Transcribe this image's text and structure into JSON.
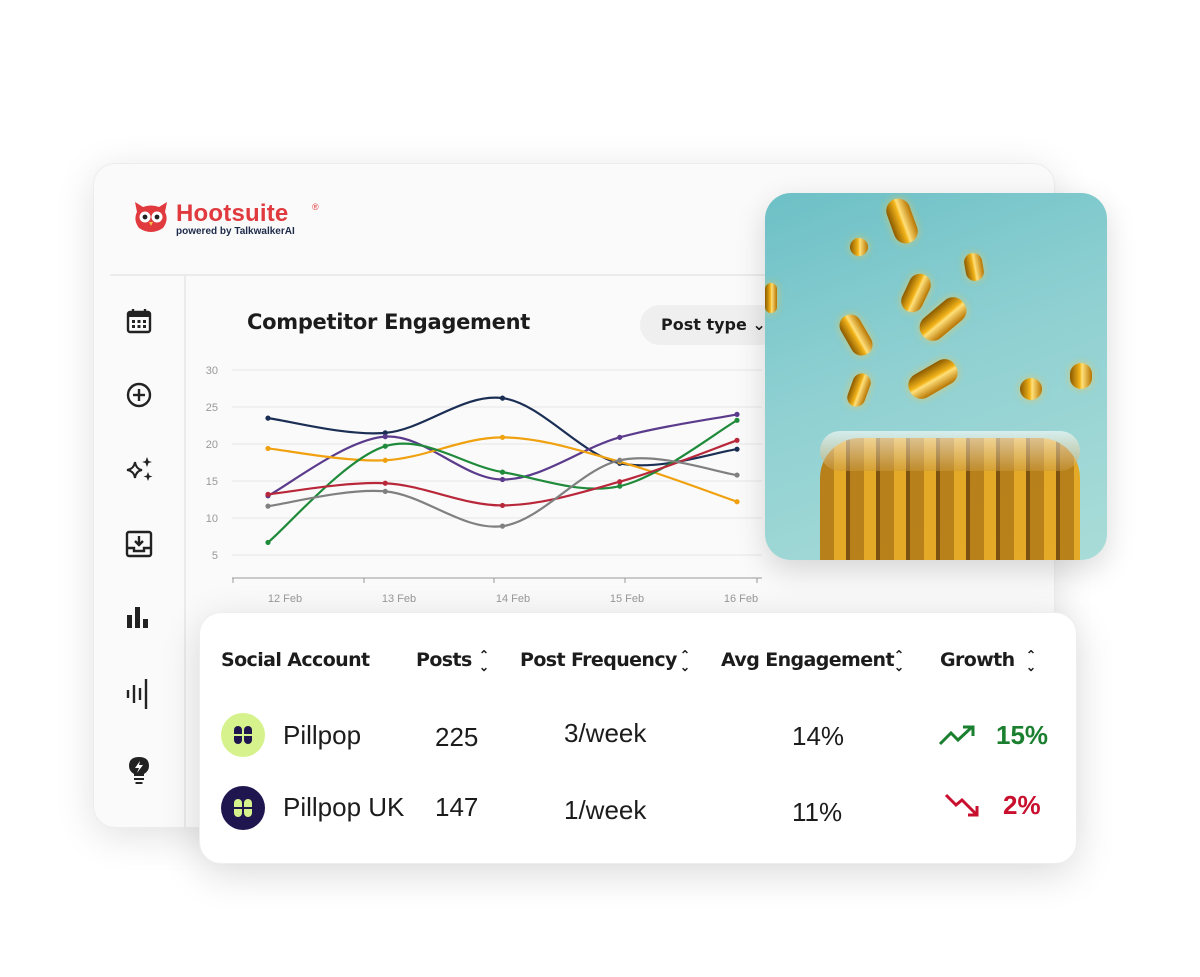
{
  "brand": {
    "name": "Hootsuite",
    "registered": "®",
    "tagline": "powered by TalkwalkerAI",
    "color": "#e03a3e"
  },
  "sidebar": {
    "items": [
      {
        "icon": "calendar-icon"
      },
      {
        "icon": "plus-circle-icon"
      },
      {
        "icon": "sparkles-icon"
      },
      {
        "icon": "inbox-icon"
      },
      {
        "icon": "bar-chart-icon"
      },
      {
        "icon": "listening-icon"
      },
      {
        "icon": "lightbulb-icon"
      }
    ]
  },
  "chart_panel": {
    "title": "Competitor Engagement",
    "filter_label": "Post type"
  },
  "chart_data": {
    "type": "line",
    "categories": [
      "12 Feb",
      "13 Feb",
      "14 Feb",
      "15 Feb",
      "16 Feb"
    ],
    "yticks": [
      5,
      10,
      15,
      20,
      25,
      30
    ],
    "ylim": [
      2,
      30
    ],
    "grid": true,
    "series": [
      {
        "color": "#1b2f55",
        "values": [
          23.5,
          21.5,
          26.2,
          17.4,
          19.3
        ]
      },
      {
        "color": "#5b3b8c",
        "values": [
          13,
          21,
          15.2,
          20.9,
          24
        ]
      },
      {
        "color": "#f0a10f",
        "values": [
          19.4,
          17.8,
          20.9,
          17.6,
          12.2
        ]
      },
      {
        "color": "#1f8a3a",
        "values": [
          6.7,
          19.7,
          16.2,
          14.3,
          23.2
        ]
      },
      {
        "color": "#b8283a",
        "values": [
          13.2,
          14.7,
          11.7,
          14.9,
          20.5
        ]
      },
      {
        "color": "#808080",
        "values": [
          11.6,
          13.6,
          8.9,
          17.8,
          15.8
        ]
      }
    ]
  },
  "table": {
    "headers": [
      "Social Account",
      "Posts",
      "Post Frequency",
      "Avg Engagement",
      "Growth"
    ],
    "rows": [
      {
        "account": "Pillpop",
        "posts": "225",
        "frequency": "3/week",
        "engagement": "14%",
        "growth": "15%",
        "trend": "up",
        "avatar_color": "#d6f28c",
        "growth_color": "#1a7f2e"
      },
      {
        "account": "Pillpop UK",
        "posts": "147",
        "frequency": "1/week",
        "engagement": "11%",
        "growth": "2%",
        "trend": "down",
        "avatar_color": "#1f1650",
        "growth_color": "#c8102e"
      }
    ]
  }
}
